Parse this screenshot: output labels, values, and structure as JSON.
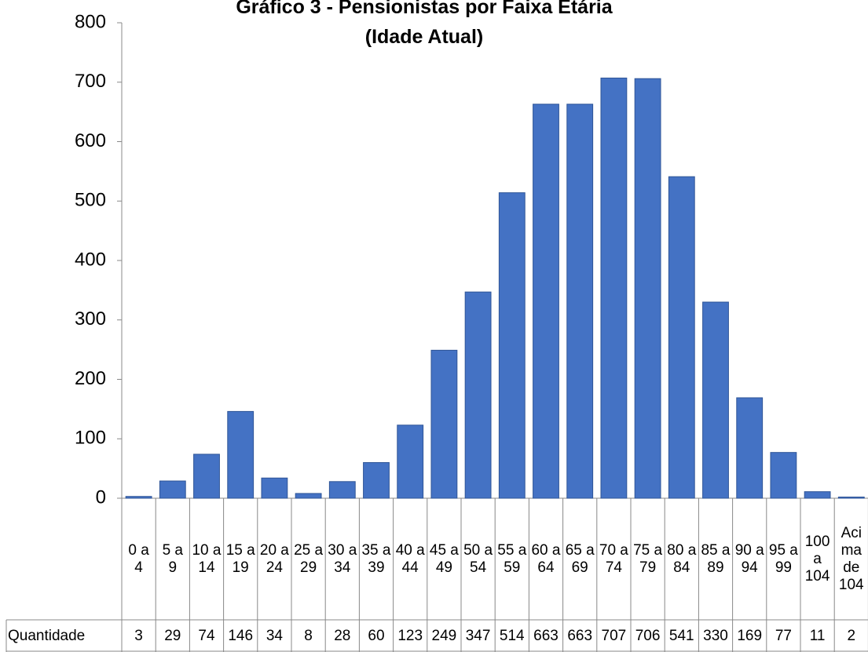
{
  "chart_data": {
    "type": "bar",
    "title": "Gráfico 3 - Pensionistas por Faixa Etária (Idade Atual)",
    "categories": [
      "0 a 4",
      "5 a 9",
      "10 a 14",
      "15 a 19",
      "20 a 24",
      "25 a 29",
      "30 a 34",
      "35 a 39",
      "40 a 44",
      "45 a 49",
      "50 a 54",
      "55 a 59",
      "60 a 64",
      "65 a 69",
      "70 a 74",
      "75 a 79",
      "80 a 84",
      "85 a 89",
      "90 a 94",
      "95 a 99",
      "100 a 104",
      "Acima de 104"
    ],
    "series": [
      {
        "name": "Quantidade",
        "color": "#4472c4",
        "values": [
          3,
          29,
          74,
          146,
          34,
          8,
          28,
          60,
          123,
          249,
          347,
          514,
          663,
          663,
          707,
          706,
          541,
          330,
          169,
          77,
          11,
          2
        ]
      }
    ],
    "ylim": [
      0,
      800
    ],
    "yticks": [
      0,
      100,
      200,
      300,
      400,
      500,
      600,
      700,
      800
    ],
    "grid": false
  }
}
